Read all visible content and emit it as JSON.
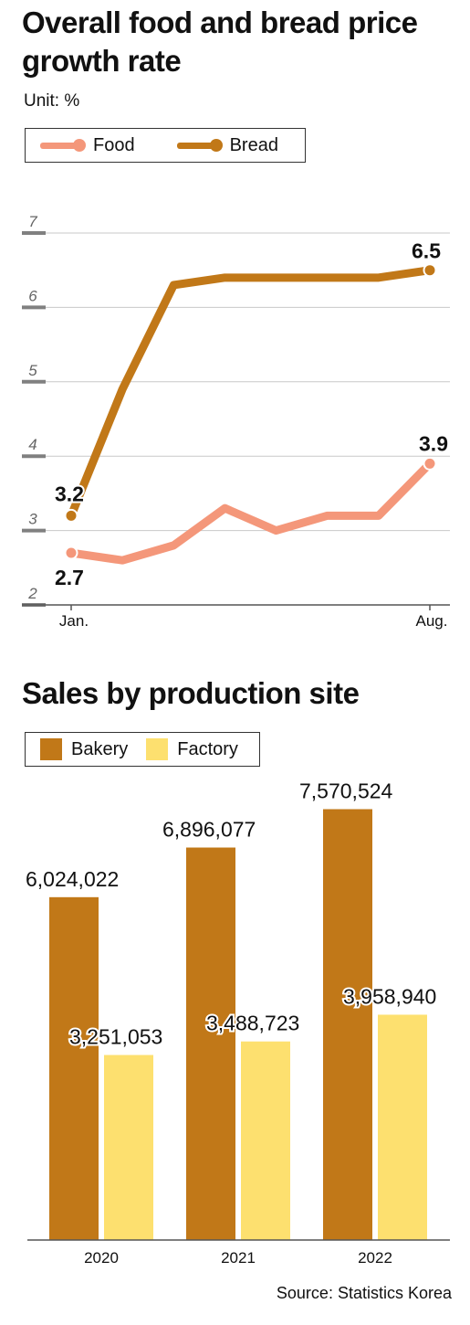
{
  "line_chart": {
    "title": "Overall food and bread price growth rate",
    "unit": "Unit: %",
    "legend": {
      "food": "Food",
      "bread": "Bread"
    }
  },
  "bar_chart": {
    "title": "Sales by production site",
    "legend": {
      "bakery": "Bakery",
      "factory": "Factory"
    }
  },
  "source": "Source: Statistics Korea",
  "colors": {
    "food": "#f4977a",
    "bread": "#c17818",
    "bakery": "#c17818",
    "factory": "#fde06f"
  },
  "chart_data": [
    {
      "type": "line",
      "title": "Overall food and bread price growth rate",
      "ylabel": "Unit: %",
      "x": [
        "Jan.",
        "",
        "",
        "",
        "",
        "",
        "",
        "Aug."
      ],
      "y_ticks": [
        2,
        3,
        4,
        5,
        6,
        7
      ],
      "ylim": [
        2,
        7
      ],
      "grid": true,
      "legend_position": "top-left",
      "series": [
        {
          "name": "Food",
          "values": [
            2.7,
            2.6,
            2.8,
            3.3,
            3.0,
            3.2,
            3.2,
            3.9
          ],
          "end_labels": [
            "2.7",
            "3.9"
          ]
        },
        {
          "name": "Bread",
          "values": [
            3.2,
            4.9,
            6.3,
            6.4,
            6.4,
            6.4,
            6.4,
            6.5
          ],
          "end_labels": [
            "3.2",
            "6.5"
          ]
        }
      ]
    },
    {
      "type": "bar",
      "title": "Sales by production site",
      "categories": [
        "2020",
        "2021",
        "2022"
      ],
      "ylim": [
        0,
        8000000
      ],
      "legend_position": "top-left",
      "series": [
        {
          "name": "Bakery",
          "values": [
            6024022,
            6896077,
            7570524
          ],
          "labels": [
            "6,024,022",
            "6,896,077",
            "7,570,524"
          ]
        },
        {
          "name": "Factory",
          "values": [
            3251053,
            3488723,
            3958940
          ],
          "labels": [
            "3,251,053",
            "3,488,723",
            "3,958,940"
          ]
        }
      ]
    }
  ]
}
